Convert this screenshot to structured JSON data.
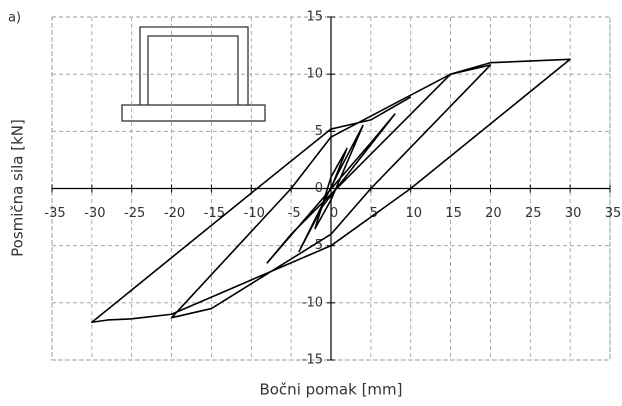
{
  "chart_data": {
    "type": "line",
    "panel_label": "a)",
    "x_label": "Bočni pomak [mm]",
    "y_label": "Posmična sila [kN]",
    "x": [
      0,
      2,
      0,
      -2,
      0,
      4,
      1,
      -4,
      -1,
      8,
      5,
      -8,
      -5,
      15,
      20,
      5,
      0,
      -15,
      -20,
      -5,
      0,
      15,
      20,
      30,
      10,
      0,
      -20,
      -25,
      -28,
      -30,
      -10,
      0,
      5,
      10
    ],
    "values": [
      0,
      3.5,
      1,
      -3.5,
      -1,
      5.5,
      1.5,
      -5.5,
      -1.5,
      6.5,
      4,
      -6.5,
      -4,
      10,
      10.8,
      0,
      -4,
      -10.5,
      -11.3,
      0,
      4.5,
      10,
      11,
      11.3,
      0,
      -5,
      -11,
      -11.4,
      -11.5,
      -11.7,
      -0.4,
      5.2,
      6,
      8
    ],
    "color": "#000000",
    "xlim": [
      -35,
      35
    ],
    "xticks": [
      -35,
      -30,
      -25,
      -20,
      -15,
      -10,
      -5,
      0,
      5,
      10,
      15,
      20,
      25,
      30,
      35
    ],
    "ylim": [
      -15,
      15
    ],
    "yticks": [
      -15,
      -10,
      -5,
      0,
      5,
      10,
      15
    ],
    "grid": true
  }
}
